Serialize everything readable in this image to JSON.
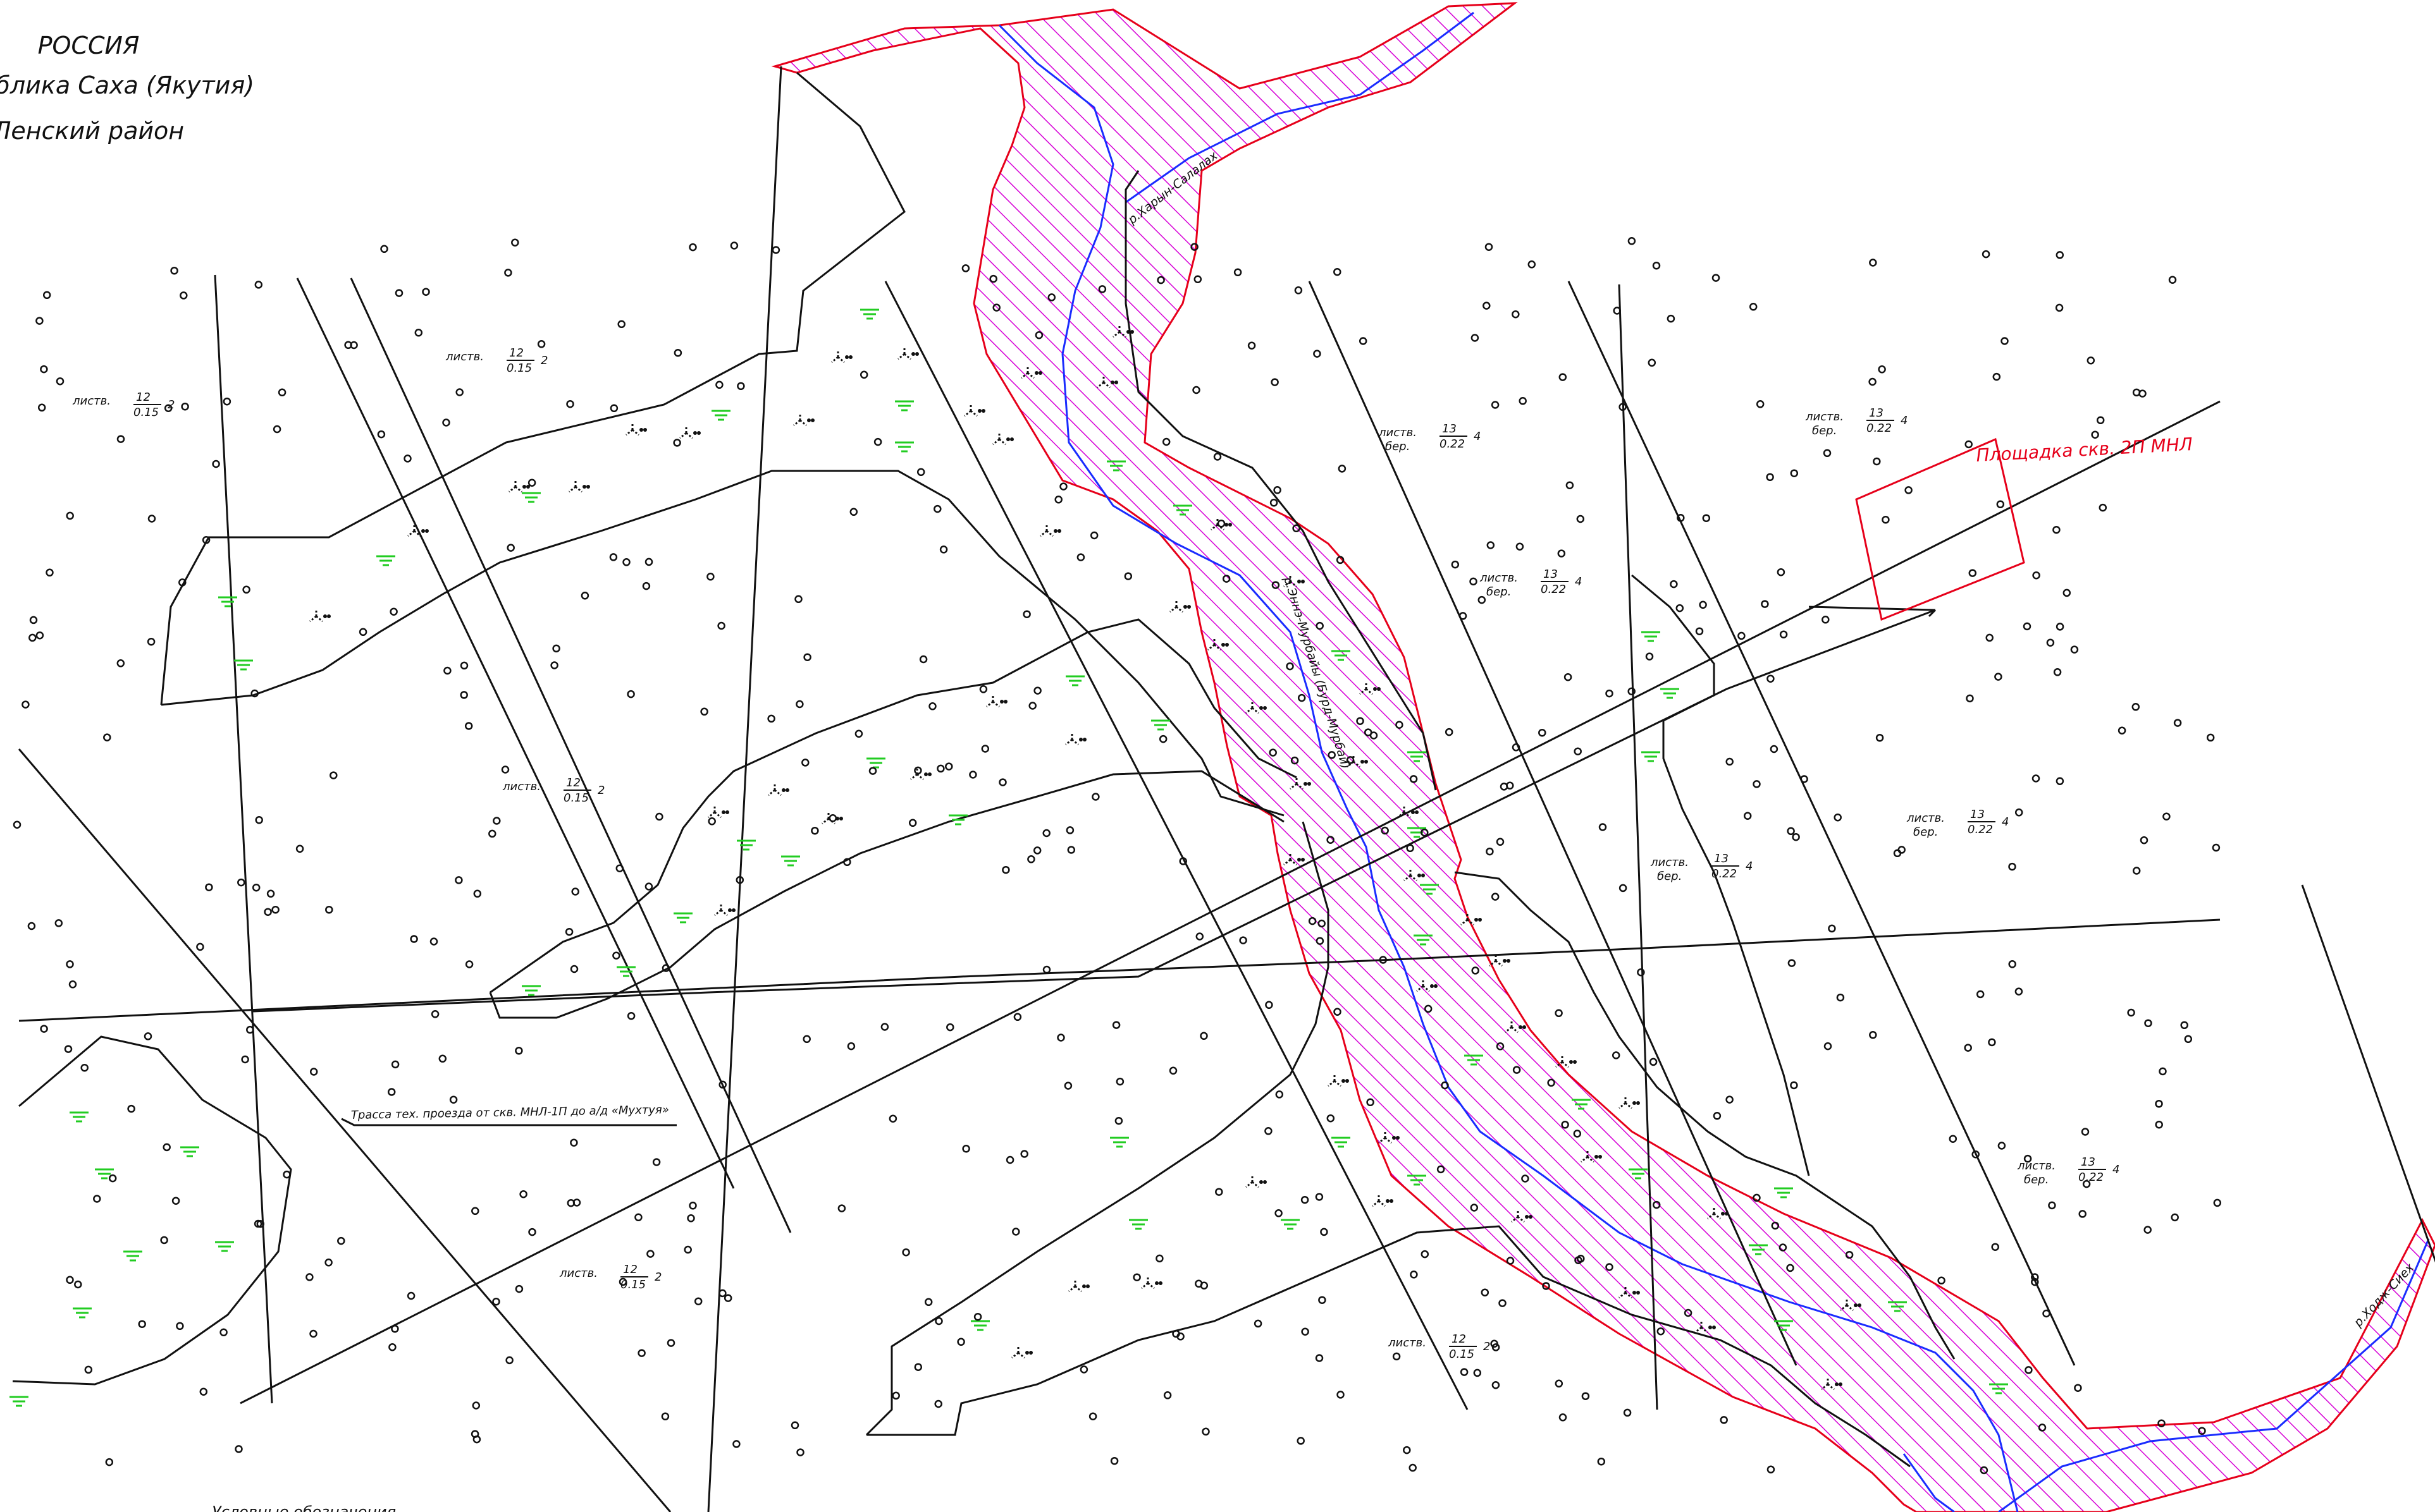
{
  "header": {
    "line1": "РОССИЯ",
    "line2": "Республика Саха (Якутия)",
    "line3": "Ленский район"
  },
  "labels": {
    "site": "Площадка скв. 2П МНЛ",
    "road": "Трасса тех. проезда от скв. МНЛ-1П до а/д «Мухтуя»",
    "river1": "р.Харын-Салалах",
    "river2": "р.Эннэ-Мурбайы (Бурд-Мурбай)",
    "river3": "р.Ходж-Сиех",
    "legend": "Условные обозначения"
  },
  "forest_labels": [
    {
      "kind": "листв.",
      "num": "12",
      "den": "0.15",
      "tail": "2"
    },
    {
      "kind": "листв.",
      "num": "12",
      "den": "0.15",
      "tail": "2"
    },
    {
      "kind": "листв.",
      "num": "12",
      "den": "0.15",
      "tail": "2"
    },
    {
      "kind": "листв.",
      "num": "12",
      "den": "0.15",
      "tail": "2"
    },
    {
      "kind": "листв.",
      "num": "12",
      "den": "0.15",
      "tail": "2"
    },
    {
      "kind": "листв.",
      "sub": "бер.",
      "num": "13",
      "den": "0.22",
      "tail": "4"
    },
    {
      "kind": "листв.",
      "sub": "бер.",
      "num": "13",
      "den": "0.22",
      "tail": "4"
    },
    {
      "kind": "листв.",
      "sub": "бер.",
      "num": "13",
      "den": "0.22",
      "tail": "4"
    },
    {
      "kind": "листв.",
      "sub": "бер.",
      "num": "13",
      "den": "0.22",
      "tail": "4"
    },
    {
      "kind": "листв.",
      "sub": "бер.",
      "num": "13",
      "den": "0.22",
      "tail": "4"
    },
    {
      "kind": "листв.",
      "sub": "бер.",
      "num": "13",
      "den": "0.22",
      "tail": "4"
    }
  ],
  "colors": {
    "hatch": "#d600d6",
    "zone_border": "#e6001a",
    "river": "#1a2cff",
    "marsh": "#22cc22",
    "lines": "#111111"
  }
}
